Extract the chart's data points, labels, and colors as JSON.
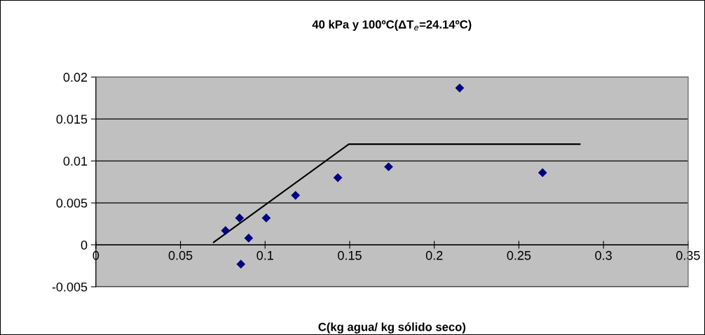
{
  "chart_data": {
    "type": "scatter",
    "title": "40 kPa y 100ºC(ΔT$_{e}$=24.14ºC)",
    "xlabel": "C(kg agua/ kg sólido seco)",
    "series": [
      {
        "color": "#000080",
        "marker": "diamond",
        "x": [
          0.0766,
          0.0849,
          0.0903,
          0.1007,
          0.118,
          0.143,
          0.173,
          0.215,
          0.264,
          0.0857
        ],
        "values": [
          0.0017,
          0.0032,
          0.0008,
          0.0032,
          0.0059,
          0.008,
          0.0093,
          0.0187,
          0.0086,
          -0.0023
        ]
      },
      {
        "type": "line",
        "color": "#000000",
        "marker": "none",
        "line_style": "solid",
        "x": [
          0.0696,
          0.1495,
          0.286
        ],
        "values": [
          0.0003,
          0.012,
          0.012
        ]
      }
    ],
    "xlim": [
      0,
      0.35
    ],
    "xticks": [
      0,
      0.05,
      0.1,
      0.15,
      0.2,
      0.25,
      0.3,
      0.35
    ],
    "ylim": [
      -0.005,
      0.02
    ],
    "yticks": [
      -0.005,
      0,
      0.005,
      0.01,
      0.015,
      0.02
    ],
    "grid": "y",
    "legend": false
  }
}
